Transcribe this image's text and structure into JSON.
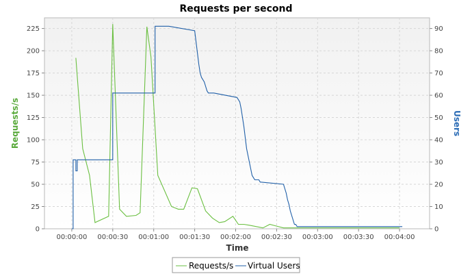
{
  "chart_data": {
    "type": "line",
    "title": "Requests per second",
    "xlabel": "Time",
    "ylabel_left": "Requests/s",
    "ylabel_right": "Users",
    "x_unit": "seconds",
    "xlim": [
      -20,
      262
    ],
    "ylim_left": [
      0,
      237
    ],
    "ylim_right": [
      0,
      94.8
    ],
    "x_tick_labels": [
      "00:00:00",
      "00:00:30",
      "00:01:00",
      "00:01:30",
      "00:02:00",
      "00:02:30",
      "00:03:00",
      "00:03:30",
      "00:04:00"
    ],
    "x_tick_values": [
      0,
      30,
      60,
      90,
      120,
      150,
      180,
      210,
      240
    ],
    "y_left_ticks": [
      0,
      25,
      50,
      75,
      100,
      125,
      150,
      175,
      200,
      225
    ],
    "y_right_ticks": [
      0,
      10,
      20,
      30,
      40,
      50,
      60,
      70,
      80,
      90
    ],
    "grid": true,
    "legend_position": "bottom-center",
    "colors": {
      "requests": "#6abf40",
      "users": "#1f5fa8",
      "left_label": "#5aaa3c",
      "right_label": "#2a6bb5"
    },
    "series": [
      {
        "name": "Requests/s",
        "axis": "left",
        "x": [
          3,
          8,
          13,
          17,
          27,
          30,
          35,
          40,
          47,
          50,
          55,
          58,
          63,
          73,
          78,
          82,
          88,
          92,
          98,
          103,
          108,
          112,
          118,
          122,
          126,
          130,
          140,
          145,
          150,
          155,
          160,
          170,
          180,
          190,
          200,
          210,
          220,
          230,
          240
        ],
        "y": [
          192,
          90,
          60,
          7,
          14,
          230,
          22,
          14,
          15,
          18,
          227,
          193,
          60,
          25,
          22,
          22,
          46,
          45,
          20,
          12,
          7,
          8,
          14,
          5,
          5,
          4,
          1,
          5,
          3,
          1,
          1,
          1,
          1,
          1,
          1,
          1,
          1,
          1,
          1
        ]
      },
      {
        "name": "Virtual Users",
        "axis": "right",
        "x": [
          0,
          1,
          1,
          3,
          3,
          4,
          4,
          30,
          30,
          61,
          61,
          71,
          71,
          90,
          91,
          92,
          93,
          94,
          95,
          96,
          97,
          98,
          99,
          100,
          103,
          104,
          121,
          123,
          124,
          125,
          126,
          127,
          128,
          129,
          130,
          131,
          132,
          133,
          134,
          137,
          138,
          155,
          156,
          157,
          158,
          159,
          160,
          161,
          162,
          163,
          164,
          165,
          166,
          242
        ],
        "y": [
          0,
          0,
          31,
          31,
          26,
          26,
          31,
          31,
          61,
          61,
          91,
          91,
          91,
          89,
          84,
          79,
          74,
          70,
          68,
          67,
          66,
          64,
          62,
          61,
          61,
          61,
          59,
          57,
          54,
          50,
          46,
          41,
          36,
          33,
          30,
          27,
          24,
          23,
          22,
          22,
          21,
          20,
          18,
          16,
          13,
          11,
          8,
          6,
          4,
          2,
          2,
          1,
          1,
          1
        ]
      }
    ]
  }
}
